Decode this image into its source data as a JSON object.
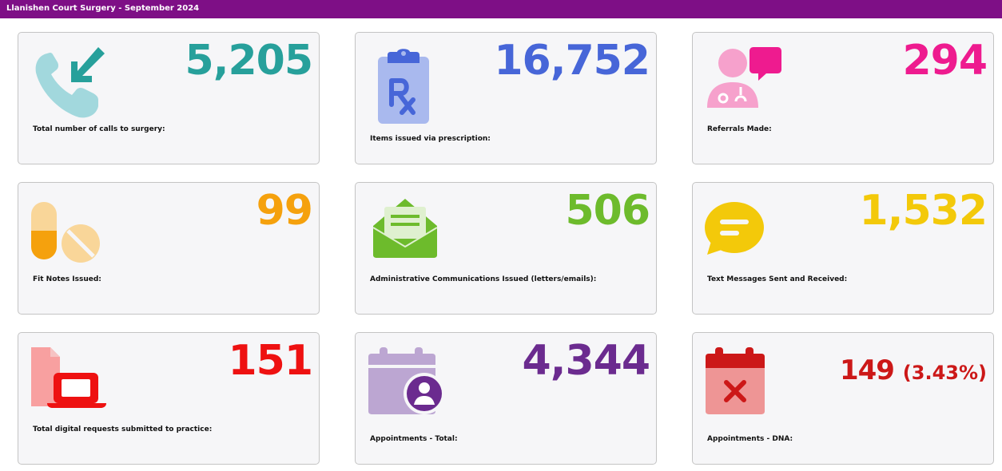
{
  "header": {
    "title": "Llanishen Court Surgery - September 2024"
  },
  "cards": [
    {
      "value": "5,205",
      "label": "Total number of calls to surgery:",
      "color": "#27a09b",
      "icon": "incoming-call-icon"
    },
    {
      "value": "16,752",
      "label": "Items issued via prescription:",
      "color": "#4766d8",
      "icon": "prescription-clipboard-icon"
    },
    {
      "value": "294",
      "label": "Referrals Made:",
      "color": "#ee1b8f",
      "icon": "doctor-chat-icon"
    },
    {
      "value": "99",
      "label": "Fit Notes Issued:",
      "color": "#f5a10d",
      "icon": "pills-icon"
    },
    {
      "value": "506",
      "label": "Administrative Communications Issued (letters/emails):",
      "color": "#6dbb2c",
      "icon": "open-envelope-icon"
    },
    {
      "value": "1,532",
      "label": "Text Messages Sent and Received:",
      "color": "#f3c90a",
      "icon": "chat-bubble-icon"
    },
    {
      "value": "151",
      "label": "Total digital requests submitted to practice:",
      "color": "#ee1111",
      "icon": "laptop-document-icon"
    },
    {
      "value": "4,344",
      "label": "Appointments - Total:",
      "color": "#6b2b8f",
      "icon": "calendar-user-icon"
    },
    {
      "value": "149",
      "value_suffix": "(3.43%)",
      "label": "Appointments - DNA:",
      "color": "#cc1818",
      "icon": "calendar-cancel-icon"
    }
  ]
}
